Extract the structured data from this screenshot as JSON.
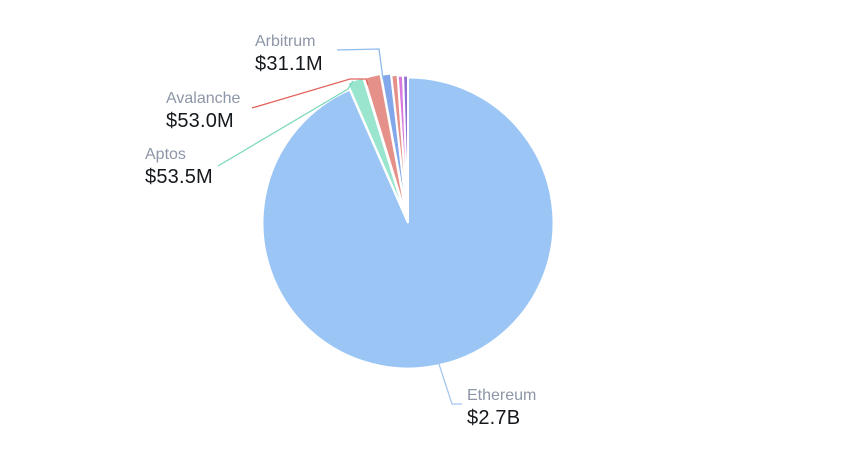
{
  "page": {
    "background_color": "#ffffff"
  },
  "chart_data": {
    "type": "pie",
    "title": "",
    "legend": "none",
    "grid": "off",
    "unit": "USD",
    "note": "values are US dollars; unlabeled slices estimated from arc angles",
    "slices": [
      {
        "name": "Ethereum",
        "value_label": "$2.7B",
        "value_musd": 2700.0,
        "color": "#9AC5F5",
        "line_color": "#A3C7F0",
        "labeled": true,
        "estimated": false
      },
      {
        "name": "Aptos",
        "value_label": "$53.5M",
        "value_musd": 53.5,
        "color": "#99E5CE",
        "line_color": "#7DD9BE",
        "labeled": true,
        "estimated": false
      },
      {
        "name": "Avalanche",
        "value_label": "$53.0M",
        "value_musd": 53.0,
        "color": "#E5918A",
        "line_color": "#E2645E",
        "labeled": true,
        "estimated": false
      },
      {
        "name": "Arbitrum",
        "value_label": "$31.1M",
        "value_musd": 31.1,
        "color": "#82A7EA",
        "line_color": "#8FBAEC",
        "labeled": true,
        "estimated": false
      },
      {
        "name": "other-1",
        "value_label": "",
        "value_musd": 20.0,
        "color": "#E5918A",
        "line_color": "",
        "labeled": false,
        "estimated": true
      },
      {
        "name": "other-2",
        "value_label": "",
        "value_musd": 16.5,
        "color": "#D878DA",
        "line_color": "",
        "labeled": false,
        "estimated": true
      },
      {
        "name": "other-3",
        "value_label": "",
        "value_musd": 15.5,
        "color": "#9070D2",
        "line_color": "",
        "labeled": false,
        "estimated": true
      }
    ],
    "text_colors": {
      "name": "#8D96A7",
      "value": "#15181C"
    }
  }
}
